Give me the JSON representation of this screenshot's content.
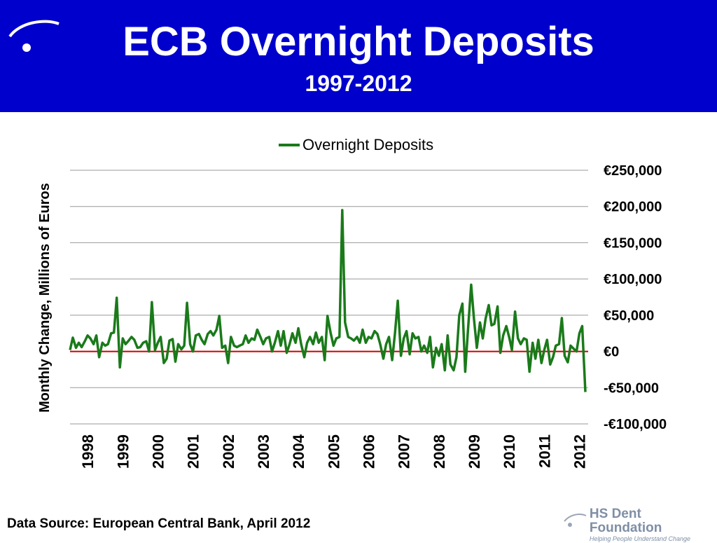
{
  "header": {
    "title": "ECB Overnight Deposits",
    "subtitle": "1997-2012"
  },
  "colors": {
    "header_bg": "#0000cc",
    "series": "#1a7a1a",
    "zero_line": "#cc0000",
    "grid": "#999999"
  },
  "footer": {
    "source": "Data Source: European Central Bank, April 2012",
    "brand_name": "HS Dent Foundation",
    "brand_tagline": "Helping People Understand Change"
  },
  "chart_data": {
    "type": "line",
    "legend_position": "top-center",
    "grid": true,
    "ylabel": "Monthly Change, Millions of Euros",
    "ylim": [
      -100000,
      250000
    ],
    "xlim": [
      1997.5,
      2012.25
    ],
    "yticks": [
      {
        "value": 250000,
        "label": "€250,000"
      },
      {
        "value": 200000,
        "label": "€200,000"
      },
      {
        "value": 150000,
        "label": "€150,000"
      },
      {
        "value": 100000,
        "label": "€100,000"
      },
      {
        "value": 50000,
        "label": "€50,000"
      },
      {
        "value": 0,
        "label": "€0"
      },
      {
        "value": -50000,
        "label": "-€50,000"
      },
      {
        "value": -100000,
        "label": "-€100,000"
      }
    ],
    "xticks": [
      {
        "value": 1998,
        "label": "1998"
      },
      {
        "value": 1999,
        "label": "1999"
      },
      {
        "value": 2000,
        "label": "2000"
      },
      {
        "value": 2001,
        "label": "2001"
      },
      {
        "value": 2002,
        "label": "2002"
      },
      {
        "value": 2003,
        "label": "2003"
      },
      {
        "value": 2004,
        "label": "2004"
      },
      {
        "value": 2005,
        "label": "2005"
      },
      {
        "value": 2006,
        "label": "2006"
      },
      {
        "value": 2007,
        "label": "2007"
      },
      {
        "value": 2008,
        "label": "2008"
      },
      {
        "value": 2009,
        "label": "2009"
      },
      {
        "value": 2010,
        "label": "2010"
      },
      {
        "value": 2011,
        "label": "2011"
      },
      {
        "value": 2012,
        "label": "2012"
      }
    ],
    "series": [
      {
        "name": "Overnight Deposits",
        "points": [
          [
            1997.5,
            2000
          ],
          [
            1997.58,
            19000
          ],
          [
            1997.67,
            5000
          ],
          [
            1997.75,
            12000
          ],
          [
            1997.83,
            6000
          ],
          [
            1997.92,
            14000
          ],
          [
            1998.0,
            22000
          ],
          [
            1998.08,
            18000
          ],
          [
            1998.17,
            10000
          ],
          [
            1998.25,
            22000
          ],
          [
            1998.33,
            -8000
          ],
          [
            1998.42,
            12000
          ],
          [
            1998.5,
            8000
          ],
          [
            1998.58,
            10000
          ],
          [
            1998.67,
            25000
          ],
          [
            1998.75,
            26000
          ],
          [
            1998.83,
            74000
          ],
          [
            1998.92,
            -22000
          ],
          [
            1999.0,
            18000
          ],
          [
            1999.08,
            10000
          ],
          [
            1999.17,
            15000
          ],
          [
            1999.25,
            20000
          ],
          [
            1999.33,
            16000
          ],
          [
            1999.42,
            5000
          ],
          [
            1999.5,
            6000
          ],
          [
            1999.58,
            12000
          ],
          [
            1999.67,
            14000
          ],
          [
            1999.75,
            0
          ],
          [
            1999.83,
            68000
          ],
          [
            1999.92,
            2000
          ],
          [
            2000.0,
            12000
          ],
          [
            2000.08,
            20000
          ],
          [
            2000.17,
            -16000
          ],
          [
            2000.25,
            -10000
          ],
          [
            2000.33,
            15000
          ],
          [
            2000.42,
            17000
          ],
          [
            2000.5,
            -14000
          ],
          [
            2000.58,
            10000
          ],
          [
            2000.67,
            3000
          ],
          [
            2000.75,
            8000
          ],
          [
            2000.83,
            67000
          ],
          [
            2000.92,
            10000
          ],
          [
            2001.0,
            0
          ],
          [
            2001.08,
            22000
          ],
          [
            2001.17,
            24000
          ],
          [
            2001.25,
            16000
          ],
          [
            2001.33,
            10000
          ],
          [
            2001.42,
            24000
          ],
          [
            2001.5,
            28000
          ],
          [
            2001.58,
            22000
          ],
          [
            2001.67,
            30000
          ],
          [
            2001.75,
            49000
          ],
          [
            2001.83,
            5000
          ],
          [
            2001.92,
            8000
          ],
          [
            2002.0,
            -16000
          ],
          [
            2002.08,
            20000
          ],
          [
            2002.17,
            8000
          ],
          [
            2002.25,
            6000
          ],
          [
            2002.33,
            8000
          ],
          [
            2002.42,
            10000
          ],
          [
            2002.5,
            22000
          ],
          [
            2002.58,
            12000
          ],
          [
            2002.67,
            18000
          ],
          [
            2002.75,
            16000
          ],
          [
            2002.83,
            30000
          ],
          [
            2002.92,
            20000
          ],
          [
            2003.0,
            10000
          ],
          [
            2003.08,
            18000
          ],
          [
            2003.17,
            20000
          ],
          [
            2003.25,
            0
          ],
          [
            2003.33,
            12000
          ],
          [
            2003.42,
            28000
          ],
          [
            2003.5,
            8000
          ],
          [
            2003.58,
            28000
          ],
          [
            2003.67,
            -2000
          ],
          [
            2003.75,
            10000
          ],
          [
            2003.83,
            25000
          ],
          [
            2003.92,
            12000
          ],
          [
            2004.0,
            32000
          ],
          [
            2004.08,
            10000
          ],
          [
            2004.17,
            -8000
          ],
          [
            2004.25,
            12000
          ],
          [
            2004.33,
            20000
          ],
          [
            2004.42,
            10000
          ],
          [
            2004.5,
            26000
          ],
          [
            2004.58,
            12000
          ],
          [
            2004.67,
            20000
          ],
          [
            2004.75,
            -12000
          ],
          [
            2004.83,
            49000
          ],
          [
            2004.92,
            25000
          ],
          [
            2005.0,
            8000
          ],
          [
            2005.08,
            18000
          ],
          [
            2005.17,
            20000
          ],
          [
            2005.25,
            195000
          ],
          [
            2005.33,
            40000
          ],
          [
            2005.42,
            20000
          ],
          [
            2005.5,
            18000
          ],
          [
            2005.58,
            15000
          ],
          [
            2005.67,
            20000
          ],
          [
            2005.75,
            12000
          ],
          [
            2005.83,
            30000
          ],
          [
            2005.92,
            12000
          ],
          [
            2006.0,
            20000
          ],
          [
            2006.08,
            18000
          ],
          [
            2006.17,
            28000
          ],
          [
            2006.25,
            24000
          ],
          [
            2006.33,
            10000
          ],
          [
            2006.42,
            -10000
          ],
          [
            2006.5,
            10000
          ],
          [
            2006.58,
            20000
          ],
          [
            2006.67,
            -12000
          ],
          [
            2006.75,
            25000
          ],
          [
            2006.83,
            70000
          ],
          [
            2006.92,
            -6000
          ],
          [
            2007.0,
            18000
          ],
          [
            2007.08,
            28000
          ],
          [
            2007.17,
            -4000
          ],
          [
            2007.25,
            25000
          ],
          [
            2007.33,
            18000
          ],
          [
            2007.42,
            20000
          ],
          [
            2007.5,
            0
          ],
          [
            2007.58,
            8000
          ],
          [
            2007.67,
            -2000
          ],
          [
            2007.75,
            20000
          ],
          [
            2007.83,
            -22000
          ],
          [
            2007.92,
            5000
          ],
          [
            2008.0,
            -6000
          ],
          [
            2008.08,
            10000
          ],
          [
            2008.17,
            -26000
          ],
          [
            2008.25,
            22000
          ],
          [
            2008.33,
            -18000
          ],
          [
            2008.42,
            -26000
          ],
          [
            2008.5,
            -8000
          ],
          [
            2008.58,
            50000
          ],
          [
            2008.67,
            66000
          ],
          [
            2008.75,
            -28000
          ],
          [
            2008.83,
            30000
          ],
          [
            2008.92,
            92000
          ],
          [
            2009.0,
            45000
          ],
          [
            2009.08,
            5000
          ],
          [
            2009.17,
            40000
          ],
          [
            2009.25,
            18000
          ],
          [
            2009.33,
            45000
          ],
          [
            2009.42,
            64000
          ],
          [
            2009.5,
            36000
          ],
          [
            2009.58,
            38000
          ],
          [
            2009.67,
            62000
          ],
          [
            2009.75,
            -2000
          ],
          [
            2009.83,
            22000
          ],
          [
            2009.92,
            35000
          ],
          [
            2010.0,
            20000
          ],
          [
            2010.08,
            2000
          ],
          [
            2010.17,
            55000
          ],
          [
            2010.25,
            18000
          ],
          [
            2010.33,
            10000
          ],
          [
            2010.42,
            18000
          ],
          [
            2010.5,
            16000
          ],
          [
            2010.58,
            -28000
          ],
          [
            2010.67,
            12000
          ],
          [
            2010.75,
            -10000
          ],
          [
            2010.83,
            16000
          ],
          [
            2010.92,
            -16000
          ],
          [
            2011.0,
            2000
          ],
          [
            2011.08,
            16000
          ],
          [
            2011.17,
            -18000
          ],
          [
            2011.25,
            -8000
          ],
          [
            2011.33,
            8000
          ],
          [
            2011.42,
            10000
          ],
          [
            2011.5,
            46000
          ],
          [
            2011.58,
            -6000
          ],
          [
            2011.67,
            -15000
          ],
          [
            2011.75,
            8000
          ],
          [
            2011.83,
            4000
          ],
          [
            2011.92,
            0
          ],
          [
            2012.0,
            25000
          ],
          [
            2012.08,
            35000
          ],
          [
            2012.17,
            -56000
          ]
        ]
      }
    ]
  }
}
